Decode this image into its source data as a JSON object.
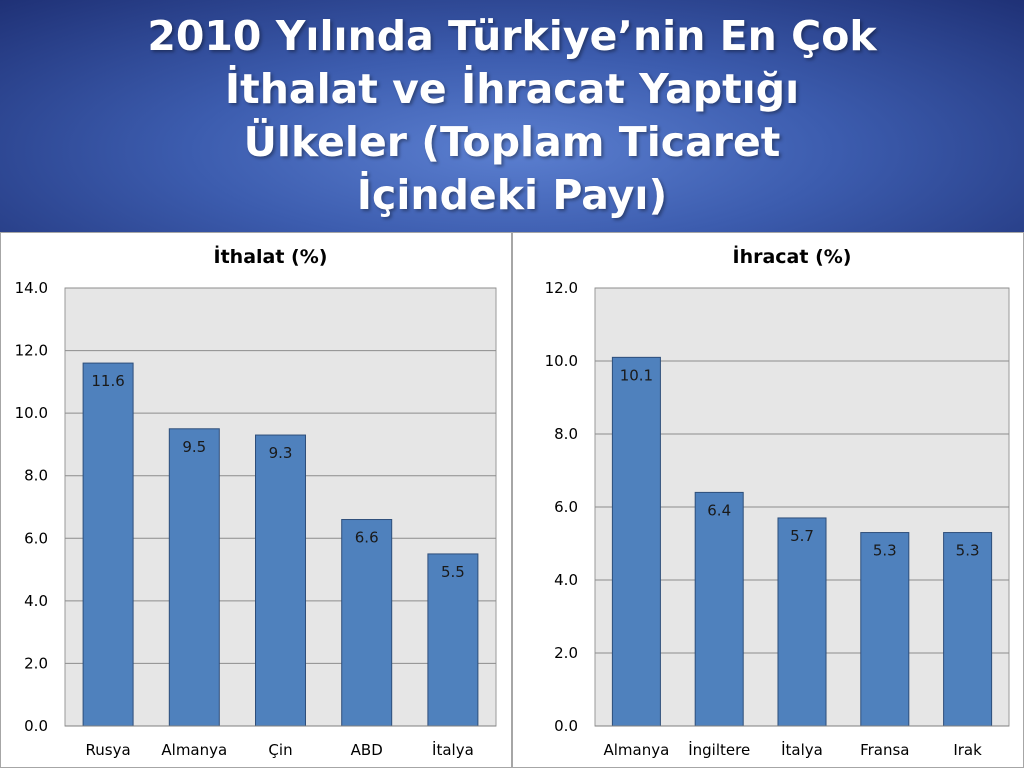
{
  "slide": {
    "title_lines": [
      "2010 Yılında Türkiye’nin En Çok",
      "İthalat ve İhracat Yaptığı",
      "Ülkeler (Toplam Ticaret",
      "İçindeki Payı)"
    ]
  },
  "colors": {
    "bar": "#4f81bd",
    "bar_border": "#2e4e7a",
    "plot_bg": "#e6e6e6",
    "grid": "#8c8c8c"
  },
  "chart_data": [
    {
      "type": "bar",
      "title": "İthalat (%)",
      "categories": [
        "Rusya",
        "Almanya",
        "Çin",
        "ABD",
        "İtalya"
      ],
      "values": [
        11.6,
        9.5,
        9.3,
        6.6,
        5.5
      ],
      "value_labels": [
        "11.6",
        "9.5",
        "9.3",
        "6.6",
        "5.5"
      ],
      "ylim": [
        0,
        14
      ],
      "yticks": [
        0,
        2,
        4,
        6,
        8,
        10,
        12,
        14
      ],
      "ytick_labels": [
        "0.0",
        "2.0",
        "4.0",
        "6.0",
        "8.0",
        "10.0",
        "12.0",
        "14.0"
      ],
      "grid": true,
      "legend": "none"
    },
    {
      "type": "bar",
      "title": "İhracat (%)",
      "categories": [
        "Almanya",
        "İngiltere",
        "İtalya",
        "Fransa",
        "Irak"
      ],
      "values": [
        10.1,
        6.4,
        5.7,
        5.3,
        5.3
      ],
      "value_labels": [
        "10.1",
        "6.4",
        "5.7",
        "5.3",
        "5.3"
      ],
      "ylim": [
        0,
        12
      ],
      "yticks": [
        0,
        2,
        4,
        6,
        8,
        10,
        12
      ],
      "ytick_labels": [
        "0.0",
        "2.0",
        "4.0",
        "6.0",
        "8.0",
        "10.0",
        "12.0"
      ],
      "grid": true,
      "legend": "none"
    }
  ]
}
